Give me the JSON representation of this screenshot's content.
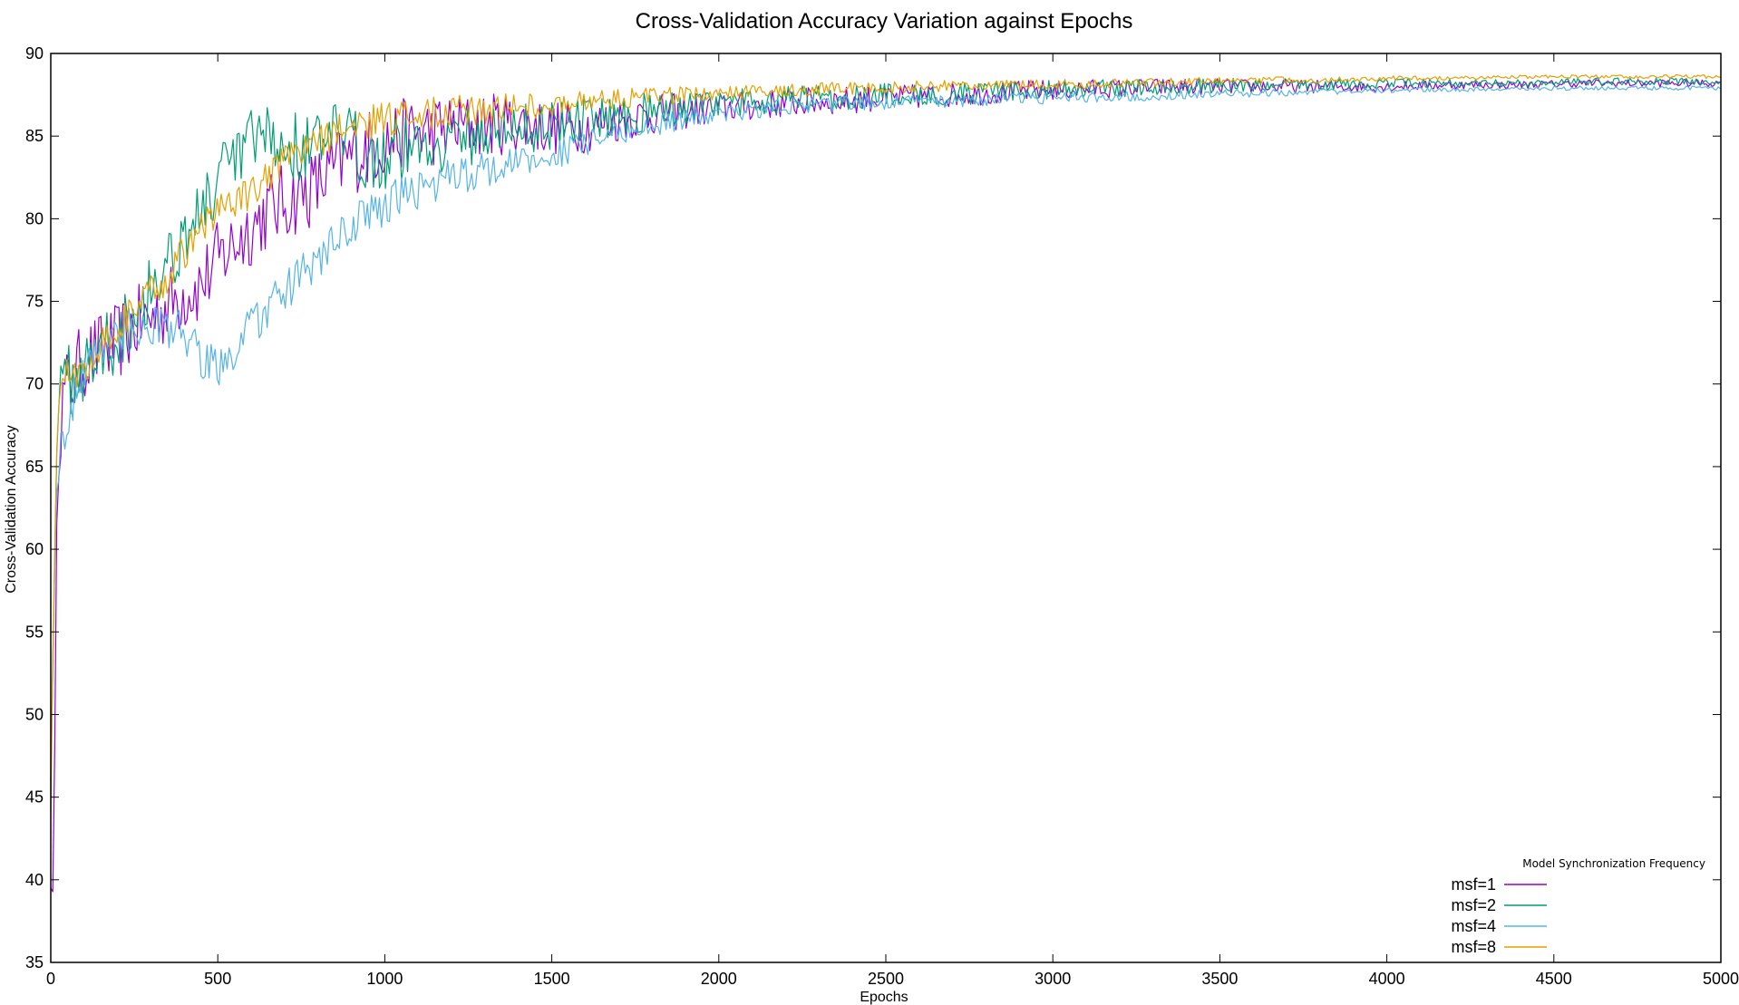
{
  "chart_data": {
    "type": "line",
    "title": "Cross-Validation Accuracy Variation against Epochs",
    "xlabel": "Epochs",
    "ylabel": "Cross-Validation Accuracy",
    "xlim": [
      0,
      5000
    ],
    "ylim": [
      35,
      90
    ],
    "xticks": [
      0,
      500,
      1000,
      1500,
      2000,
      2500,
      3000,
      3500,
      4000,
      4500,
      5000
    ],
    "yticks": [
      35,
      40,
      45,
      50,
      55,
      60,
      65,
      70,
      75,
      80,
      85,
      90
    ],
    "grid": false,
    "legend": {
      "title": "Model Synchronization Frequency",
      "placement": "bottom-right"
    },
    "series": [
      {
        "name": "msf=1",
        "color": "#9400d3",
        "noise": 2.4,
        "x": [
          0,
          8,
          20,
          40,
          70,
          100,
          150,
          200,
          250,
          300,
          350,
          400,
          450,
          500,
          550,
          600,
          650,
          700,
          750,
          800,
          850,
          900,
          950,
          1000,
          1100,
          1200,
          1300,
          1400,
          1500,
          1600,
          1700,
          1800,
          1900,
          2000,
          2200,
          2400,
          2600,
          2800,
          3000,
          3200,
          3400,
          3600,
          3800,
          4000,
          4200,
          4400,
          4600,
          4800,
          5000
        ],
        "y": [
          39.5,
          39.2,
          66,
          69.5,
          70.5,
          71.5,
          72,
          72.5,
          73.5,
          74,
          74.8,
          75.5,
          76,
          77.5,
          78.5,
          79.5,
          80.5,
          81,
          81.5,
          82,
          83,
          83.8,
          84.3,
          84.7,
          85.2,
          85.5,
          85.7,
          85.8,
          85.5,
          85.5,
          86,
          86.3,
          86.5,
          86.7,
          87,
          87.2,
          87.4,
          87.6,
          87.8,
          87.9,
          88,
          88,
          88,
          88,
          88.1,
          88.1,
          88.2,
          88.2,
          88.2
        ]
      },
      {
        "name": "msf=2",
        "color": "#009e73",
        "noise": 2.2,
        "x": [
          0,
          8,
          20,
          40,
          70,
          100,
          150,
          200,
          250,
          300,
          350,
          400,
          450,
          500,
          550,
          600,
          650,
          700,
          750,
          800,
          850,
          900,
          950,
          1000,
          1100,
          1200,
          1300,
          1400,
          1500,
          1600,
          1700,
          1800,
          1900,
          2000,
          2200,
          2400,
          2600,
          2800,
          3000,
          3200,
          3400,
          3600,
          3800,
          4000,
          4200,
          4400,
          4600,
          4800,
          5000
        ],
        "y": [
          46,
          55,
          68,
          70,
          70.5,
          71,
          72,
          73,
          74.5,
          76,
          77.5,
          79,
          80.5,
          82,
          83.5,
          84.5,
          84.8,
          84.5,
          84.3,
          84.5,
          84.8,
          84.5,
          84,
          84,
          84.5,
          84.8,
          85.2,
          85.5,
          85.7,
          86,
          86.3,
          86.5,
          86.7,
          86.9,
          87.2,
          87.4,
          87.5,
          87.6,
          87.8,
          87.9,
          88,
          88.1,
          88.1,
          88.2,
          88.2,
          88.2,
          88.3,
          88.3,
          88.3
        ]
      },
      {
        "name": "msf=4",
        "color": "#56b4e9",
        "noise": 1.3,
        "x": [
          0,
          8,
          20,
          40,
          70,
          100,
          150,
          200,
          250,
          300,
          350,
          400,
          450,
          500,
          550,
          600,
          650,
          700,
          750,
          800,
          850,
          900,
          950,
          1000,
          1100,
          1200,
          1300,
          1400,
          1500,
          1600,
          1700,
          1800,
          1900,
          2000,
          2200,
          2400,
          2600,
          2800,
          3000,
          3200,
          3400,
          3600,
          3800,
          4000,
          4200,
          4400,
          4600,
          4800,
          5000
        ],
        "y": [
          46,
          56,
          65,
          67,
          69,
          71,
          72.5,
          73,
          73.5,
          73.5,
          73.5,
          73,
          71.5,
          71,
          72,
          73.5,
          74.5,
          75.5,
          76.5,
          77.5,
          78.5,
          79.5,
          80.3,
          80.8,
          81.8,
          82.5,
          83,
          83.4,
          83.8,
          84.5,
          85.2,
          85.6,
          86,
          86.3,
          86.8,
          87,
          87.1,
          87.2,
          87.3,
          87.4,
          87.5,
          87.6,
          87.7,
          87.8,
          87.8,
          87.9,
          87.9,
          87.9,
          87.9
        ]
      },
      {
        "name": "msf=8",
        "color": "#e69f00",
        "noise": 1.1,
        "x": [
          0,
          8,
          20,
          40,
          70,
          100,
          150,
          200,
          250,
          300,
          350,
          400,
          450,
          500,
          550,
          600,
          650,
          700,
          750,
          800,
          850,
          900,
          950,
          1000,
          1100,
          1200,
          1300,
          1400,
          1500,
          1600,
          1700,
          1800,
          1900,
          2000,
          2200,
          2400,
          2600,
          2800,
          3000,
          3200,
          3400,
          3600,
          3800,
          4000,
          4200,
          4400,
          4600,
          4800,
          5000
        ],
        "y": [
          44,
          56,
          68,
          70.5,
          70.5,
          71,
          72.5,
          73.5,
          74.5,
          75.5,
          76.5,
          78,
          79.5,
          80.5,
          81,
          81.5,
          82.5,
          83.3,
          84,
          84.7,
          85.2,
          85.5,
          85.8,
          86,
          86.3,
          86.5,
          86.6,
          86.8,
          86.9,
          87.1,
          87.3,
          87.4,
          87.5,
          87.6,
          87.8,
          87.9,
          88,
          88.1,
          88.1,
          88.2,
          88.3,
          88.4,
          88.4,
          88.5,
          88.5,
          88.6,
          88.6,
          88.6,
          88.6
        ]
      }
    ]
  }
}
